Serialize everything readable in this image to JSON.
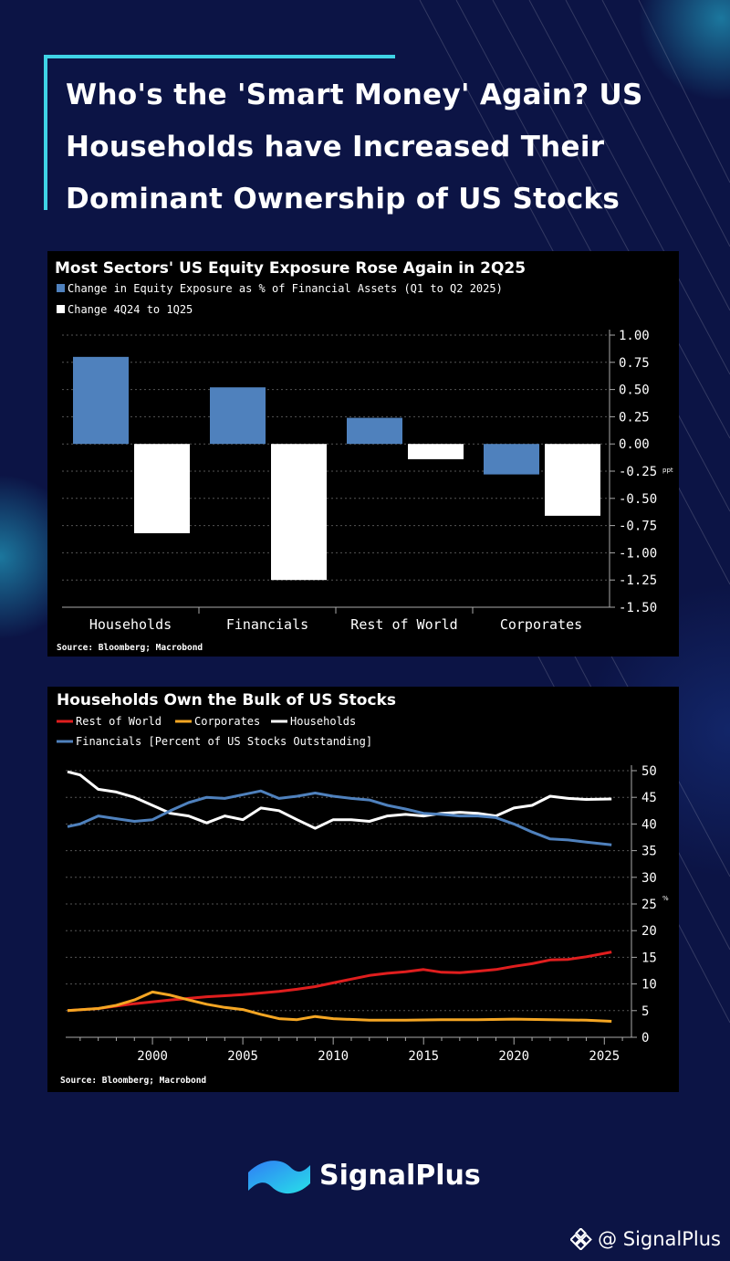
{
  "header": {
    "title": "Who's the 'Smart Money' Again?  US Households have Increased Their Dominant Ownership of US Stocks"
  },
  "chart_data": [
    {
      "type": "bar",
      "title": "Most Sectors' US Equity Exposure Rose Again in 2Q25",
      "categories": [
        "Households",
        "Financials",
        "Rest of World",
        "Corporates"
      ],
      "series": [
        {
          "name": "Change in Equity Exposure as % of Financial Assets (Q1 to Q2 2025)",
          "color": "#4f81bd",
          "values": [
            0.8,
            0.52,
            0.24,
            -0.28
          ]
        },
        {
          "name": "Change 4Q24 to 1Q25",
          "color": "#ffffff",
          "values": [
            -0.82,
            -1.25,
            -0.14,
            -0.66
          ]
        }
      ],
      "yticks": [
        "1.00",
        "0.75",
        "0.50",
        "0.25",
        "0.00",
        "-0.25",
        "-0.50",
        "-0.75",
        "-1.00",
        "-1.25",
        "-1.50"
      ],
      "ylim": [
        -1.5,
        1.0
      ],
      "y_unit": "ppt",
      "grid": true,
      "source": "Source: Bloomberg; Macrobond"
    },
    {
      "type": "line",
      "title": "Households Own the Bulk of US Stocks",
      "legend": [
        "Rest of World",
        "Corporates",
        "Households",
        "Financials [Percent of US Stocks Outstanding]"
      ],
      "xticks": [
        "2000",
        "2005",
        "2010",
        "2015",
        "2020",
        "2025"
      ],
      "yticks": [
        "50",
        "45",
        "40",
        "35",
        "30",
        "25",
        "20",
        "15",
        "10",
        "5",
        "0"
      ],
      "xlim": [
        1995.2,
        2026.5
      ],
      "ylim": [
        0,
        50
      ],
      "y_unit": "%",
      "grid": true,
      "series": [
        {
          "name": "Rest of World",
          "color": "#e01e1e",
          "x": [
            1995.3,
            1997,
            1999,
            2001,
            2003,
            2005,
            2007,
            2008,
            2009,
            2010,
            2011,
            2012,
            2013,
            2014,
            2015,
            2016,
            2017,
            2018,
            2019,
            2020,
            2021,
            2022,
            2023,
            2024,
            2025.4
          ],
          "y": [
            5.0,
            5.4,
            6.3,
            7.0,
            7.6,
            8.0,
            8.6,
            9.0,
            9.5,
            10.2,
            10.9,
            11.6,
            12.0,
            12.3,
            12.7,
            12.2,
            12.1,
            12.4,
            12.7,
            13.3,
            13.8,
            14.5,
            14.6,
            15.1,
            16.0
          ]
        },
        {
          "name": "Corporates",
          "color": "#f5a623",
          "x": [
            1995.3,
            1997,
            1998,
            1999,
            2000,
            2001,
            2002,
            2003,
            2004,
            2005,
            2006,
            2007,
            2008,
            2009,
            2010,
            2012,
            2014,
            2016,
            2018,
            2020,
            2022,
            2024,
            2025.4
          ],
          "y": [
            5.0,
            5.4,
            6.0,
            7.0,
            8.5,
            7.9,
            7.0,
            6.2,
            5.6,
            5.2,
            4.3,
            3.5,
            3.3,
            3.9,
            3.5,
            3.2,
            3.2,
            3.3,
            3.3,
            3.4,
            3.3,
            3.2,
            3.0
          ]
        },
        {
          "name": "Households",
          "color": "#ffffff",
          "x": [
            1995.3,
            1996,
            1997,
            1998,
            1999,
            2000,
            2001,
            2002,
            2003,
            2004,
            2005,
            2006,
            2007,
            2008,
            2009,
            2010,
            2011,
            2012,
            2013,
            2014,
            2015,
            2016,
            2017,
            2018,
            2019,
            2020,
            2021,
            2022,
            2023,
            2024,
            2025.4
          ],
          "y": [
            49.8,
            49.2,
            46.5,
            46.0,
            45.0,
            43.5,
            42.0,
            41.5,
            40.2,
            41.5,
            40.8,
            43.0,
            42.5,
            40.8,
            39.2,
            40.8,
            40.8,
            40.5,
            41.5,
            41.8,
            41.5,
            42.0,
            42.2,
            42.0,
            41.5,
            43.0,
            43.5,
            45.2,
            44.8,
            44.6,
            44.7
          ]
        },
        {
          "name": "Financials",
          "color": "#4f81bd",
          "x": [
            1995.3,
            1996,
            1997,
            1998,
            1999,
            2000,
            2001,
            2002,
            2003,
            2004,
            2005,
            2006,
            2007,
            2008,
            2009,
            2010,
            2011,
            2012,
            2013,
            2014,
            2015,
            2016,
            2017,
            2018,
            2019,
            2020,
            2021,
            2022,
            2023,
            2024,
            2025.4
          ],
          "y": [
            39.5,
            40.0,
            41.5,
            41.0,
            40.5,
            40.8,
            42.5,
            44.0,
            45.0,
            44.8,
            45.5,
            46.2,
            44.8,
            45.2,
            45.8,
            45.2,
            44.8,
            44.5,
            43.5,
            42.8,
            42.0,
            41.8,
            41.5,
            41.5,
            41.2,
            40.0,
            38.5,
            37.2,
            37.0,
            36.6,
            36.1
          ]
        }
      ],
      "source": "Source: Bloomberg; Macrobond"
    }
  ],
  "brand": {
    "name": "SignalPlus"
  },
  "watermark": {
    "text": "@ SignalPlus"
  }
}
